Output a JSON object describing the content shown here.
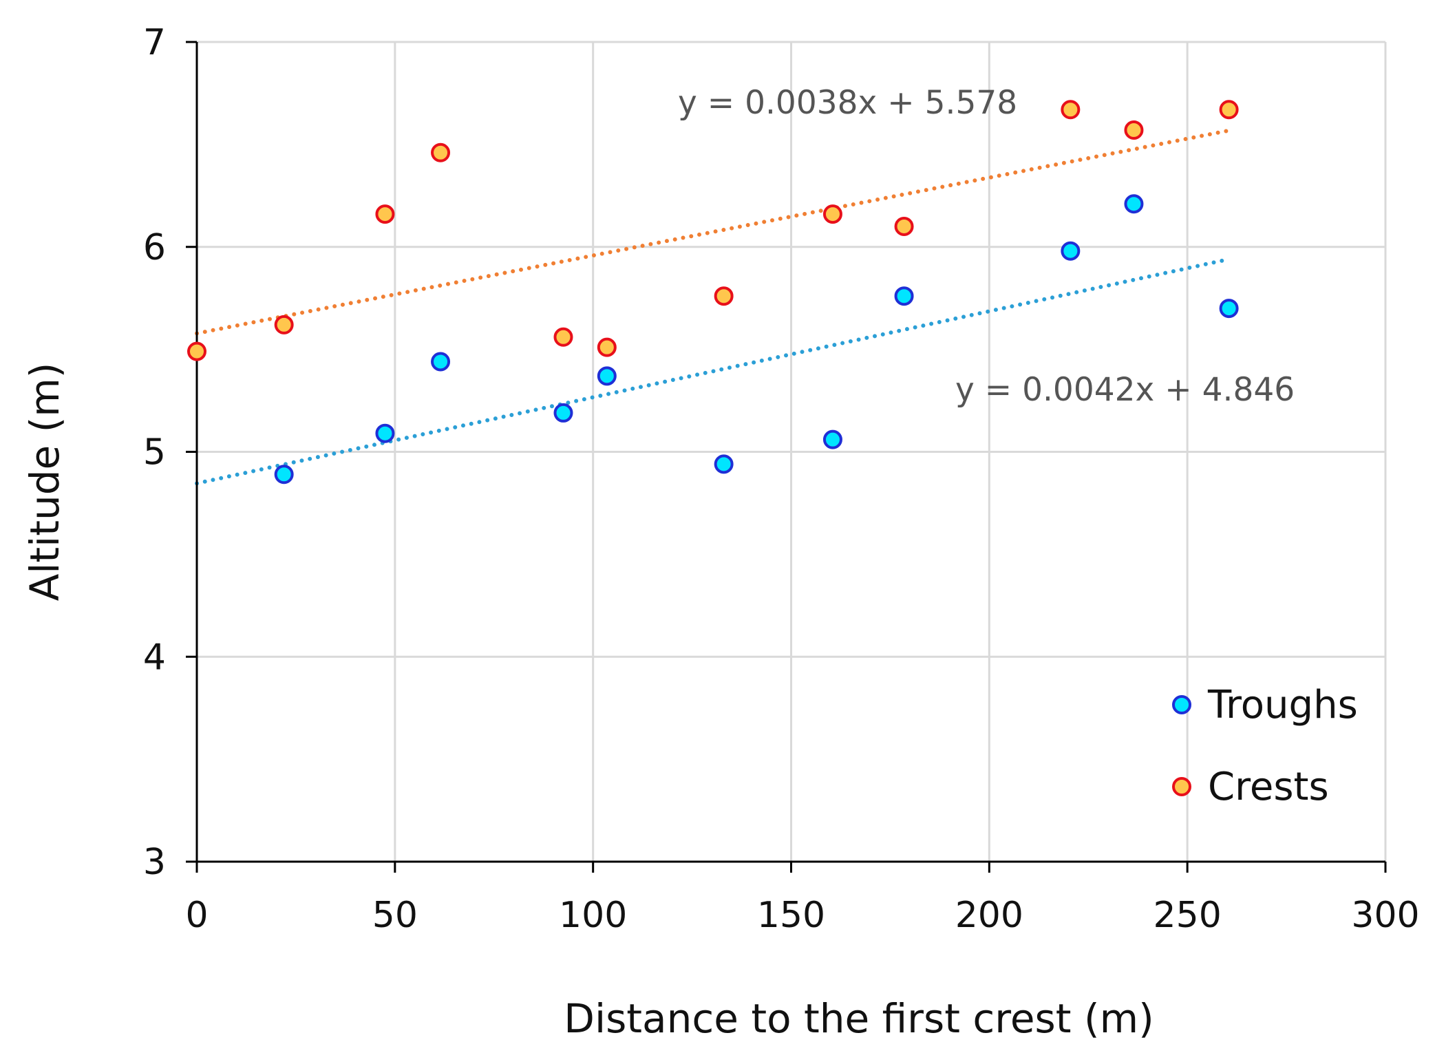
{
  "chart_data": {
    "type": "scatter",
    "title": "",
    "xlabel": "Distance to the first crest (m)",
    "ylabel": "Altitude (m)",
    "xlim": [
      0,
      300
    ],
    "ylim": [
      3,
      7
    ],
    "xticks": [
      0,
      50,
      100,
      150,
      200,
      250,
      300
    ],
    "yticks": [
      3,
      4,
      5,
      6,
      7
    ],
    "grid": true,
    "legend_position": "bottom-right",
    "series": [
      {
        "name": "Troughs",
        "marker_fill": "#00e5ff",
        "marker_edge": "#1f2fd6",
        "trend_color": "#2b9fd6",
        "equation": "y = 0.0042x + 4.846",
        "trend": {
          "slope": 0.0042,
          "intercept": 4.846,
          "x_range": [
            0,
            260
          ]
        },
        "points": [
          {
            "x": 22,
            "y": 4.89
          },
          {
            "x": 47.5,
            "y": 5.09
          },
          {
            "x": 61.5,
            "y": 5.44
          },
          {
            "x": 92.5,
            "y": 5.19
          },
          {
            "x": 103.5,
            "y": 5.37
          },
          {
            "x": 133,
            "y": 4.94
          },
          {
            "x": 160.5,
            "y": 5.06
          },
          {
            "x": 178.5,
            "y": 5.76
          },
          {
            "x": 220.5,
            "y": 5.98
          },
          {
            "x": 236.5,
            "y": 6.21
          },
          {
            "x": 260.5,
            "y": 5.7
          }
        ]
      },
      {
        "name": "Crests",
        "marker_fill": "#ffc64d",
        "marker_edge": "#e8101a",
        "trend_color": "#f07f33",
        "equation": "y = 0.0038x + 5.578",
        "trend": {
          "slope": 0.0038,
          "intercept": 5.578,
          "x_range": [
            0,
            260
          ]
        },
        "points": [
          {
            "x": 0,
            "y": 5.49
          },
          {
            "x": 22,
            "y": 5.62
          },
          {
            "x": 47.5,
            "y": 6.16
          },
          {
            "x": 61.5,
            "y": 6.46
          },
          {
            "x": 92.5,
            "y": 5.56
          },
          {
            "x": 103.5,
            "y": 5.51
          },
          {
            "x": 133,
            "y": 5.76
          },
          {
            "x": 160.5,
            "y": 6.16
          },
          {
            "x": 178.5,
            "y": 6.1
          },
          {
            "x": 220.5,
            "y": 6.67
          },
          {
            "x": 236.5,
            "y": 6.57
          },
          {
            "x": 260.5,
            "y": 6.67
          }
        ]
      }
    ]
  }
}
